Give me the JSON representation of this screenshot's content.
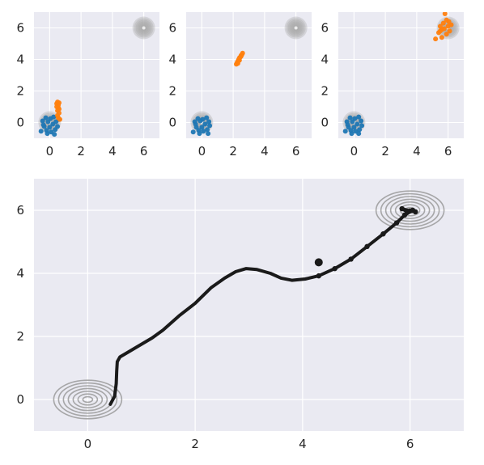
{
  "chart_data": [
    {
      "type": "scatter",
      "panel": "top-left",
      "xlim": [
        -1,
        7
      ],
      "ylim": [
        -1,
        7
      ],
      "xticks": [
        0,
        2,
        4,
        6
      ],
      "yticks": [
        0,
        2,
        4,
        6
      ],
      "grid": true,
      "gaussians": [
        {
          "center": [
            0,
            0
          ]
        },
        {
          "center": [
            6,
            6
          ]
        }
      ],
      "series": [
        {
          "color": "#1f77b4",
          "points": [
            [
              -0.55,
              -0.55
            ],
            [
              -0.45,
              0.1
            ],
            [
              -0.35,
              -0.25
            ],
            [
              -0.25,
              0.3
            ],
            [
              -0.2,
              -0.5
            ],
            [
              -0.1,
              0.05
            ],
            [
              0,
              -0.3
            ],
            [
              0.05,
              0.25
            ],
            [
              0.1,
              -0.6
            ],
            [
              0.2,
              -0.1
            ],
            [
              0.25,
              0.35
            ],
            [
              0.35,
              -0.45
            ],
            [
              0.4,
              0.05
            ],
            [
              0.5,
              -0.25
            ],
            [
              -0.15,
              -0.7
            ],
            [
              0.3,
              -0.75
            ],
            [
              -0.4,
              -0.15
            ],
            [
              0.6,
              0.2
            ]
          ]
        },
        {
          "color": "#ff7f0e",
          "points": [
            [
              0.45,
              1.2
            ],
            [
              0.5,
              1.3
            ],
            [
              0.55,
              1.1
            ],
            [
              0.6,
              1.25
            ],
            [
              0.55,
              0.95
            ],
            [
              0.5,
              0.75
            ],
            [
              0.6,
              0.6
            ],
            [
              0.5,
              0.45
            ],
            [
              0.55,
              0.3
            ],
            [
              0.65,
              0.2
            ],
            [
              0.45,
              1.0
            ],
            [
              0.6,
              0.85
            ]
          ]
        }
      ]
    },
    {
      "type": "scatter",
      "panel": "top-middle",
      "xlim": [
        -1,
        7
      ],
      "ylim": [
        -1,
        7
      ],
      "xticks": [
        0,
        2,
        4,
        6
      ],
      "yticks": [
        0,
        2,
        4,
        6
      ],
      "grid": true,
      "gaussians": [
        {
          "center": [
            0,
            0
          ]
        },
        {
          "center": [
            6,
            6
          ]
        }
      ],
      "series": [
        {
          "color": "#1f77b4",
          "points": [
            [
              -0.55,
              -0.6
            ],
            [
              -0.45,
              0.05
            ],
            [
              -0.35,
              -0.3
            ],
            [
              -0.25,
              0.25
            ],
            [
              -0.2,
              -0.5
            ],
            [
              -0.1,
              0.1
            ],
            [
              0,
              -0.3
            ],
            [
              0.05,
              0.2
            ],
            [
              0.1,
              -0.55
            ],
            [
              0.2,
              -0.1
            ],
            [
              0.3,
              0.3
            ],
            [
              0.35,
              -0.45
            ],
            [
              0.45,
              0.05
            ],
            [
              0.5,
              -0.2
            ],
            [
              -0.15,
              -0.7
            ],
            [
              0.4,
              -0.7
            ],
            [
              -0.4,
              -0.1
            ]
          ]
        },
        {
          "color": "#ff7f0e",
          "points": [
            [
              2.2,
              3.7
            ],
            [
              2.25,
              3.8
            ],
            [
              2.3,
              3.9
            ],
            [
              2.35,
              4.0
            ],
            [
              2.4,
              4.1
            ],
            [
              2.45,
              4.15
            ],
            [
              2.5,
              4.25
            ],
            [
              2.55,
              4.3
            ],
            [
              2.6,
              4.4
            ],
            [
              2.3,
              3.75
            ],
            [
              2.4,
              3.95
            ],
            [
              2.5,
              4.2
            ]
          ]
        }
      ]
    },
    {
      "type": "scatter",
      "panel": "top-right",
      "xlim": [
        -1,
        7
      ],
      "ylim": [
        -1,
        7
      ],
      "xticks": [
        0,
        2,
        4,
        6
      ],
      "yticks": [
        0,
        2,
        4,
        6
      ],
      "grid": true,
      "gaussians": [
        {
          "center": [
            0,
            0
          ]
        },
        {
          "center": [
            6,
            6
          ]
        }
      ],
      "series": [
        {
          "color": "#1f77b4",
          "points": [
            [
              -0.55,
              -0.55
            ],
            [
              -0.45,
              0.05
            ],
            [
              -0.35,
              -0.3
            ],
            [
              -0.25,
              0.3
            ],
            [
              -0.2,
              -0.5
            ],
            [
              -0.1,
              0.05
            ],
            [
              0,
              -0.3
            ],
            [
              0.05,
              0.25
            ],
            [
              0.1,
              -0.55
            ],
            [
              0.2,
              -0.1
            ],
            [
              0.3,
              0.35
            ],
            [
              0.35,
              -0.45
            ],
            [
              0.45,
              0.1
            ],
            [
              0.5,
              -0.2
            ],
            [
              -0.15,
              -0.7
            ],
            [
              0.3,
              -0.7
            ],
            [
              -0.4,
              -0.15
            ]
          ]
        },
        {
          "color": "#ff7f0e",
          "points": [
            [
              5.2,
              5.3
            ],
            [
              5.4,
              5.7
            ],
            [
              5.5,
              6.1
            ],
            [
              5.6,
              5.9
            ],
            [
              5.7,
              6.3
            ],
            [
              5.8,
              6.9
            ],
            [
              5.9,
              6.5
            ],
            [
              6.0,
              6.1
            ],
            [
              6.1,
              5.8
            ],
            [
              6.2,
              6.2
            ],
            [
              5.6,
              5.4
            ],
            [
              5.9,
              5.6
            ],
            [
              5.5,
              5.8
            ],
            [
              6.05,
              6.4
            ],
            [
              5.75,
              5.95
            ]
          ]
        }
      ]
    },
    {
      "type": "line",
      "panel": "bottom",
      "xlim": [
        -1,
        7
      ],
      "ylim": [
        -1,
        7
      ],
      "xticks": [
        0,
        2,
        4,
        6
      ],
      "yticks": [
        0,
        2,
        4,
        6
      ],
      "grid": true,
      "gaussians": [
        {
          "center": [
            0,
            0
          ]
        },
        {
          "center": [
            6,
            6
          ]
        }
      ],
      "series": [
        {
          "color": "#1a1a1a",
          "points": [
            [
              0.42,
              -0.15
            ],
            [
              0.5,
              0.1
            ],
            [
              0.53,
              0.5
            ],
            [
              0.54,
              0.9
            ],
            [
              0.55,
              1.2
            ],
            [
              0.6,
              1.35
            ],
            [
              0.75,
              1.5
            ],
            [
              0.9,
              1.65
            ],
            [
              1.2,
              1.95
            ],
            [
              1.4,
              2.2
            ],
            [
              1.7,
              2.65
            ],
            [
              2.0,
              3.05
            ],
            [
              2.3,
              3.55
            ],
            [
              2.55,
              3.85
            ],
            [
              2.75,
              4.05
            ],
            [
              2.95,
              4.15
            ],
            [
              3.15,
              4.12
            ],
            [
              3.4,
              4.0
            ],
            [
              3.6,
              3.85
            ],
            [
              3.8,
              3.78
            ],
            [
              4.05,
              3.82
            ],
            [
              4.3,
              3.92
            ],
            [
              4.6,
              4.15
            ],
            [
              4.9,
              4.45
            ],
            [
              5.2,
              4.85
            ],
            [
              5.5,
              5.25
            ],
            [
              5.75,
              5.6
            ],
            [
              5.9,
              5.85
            ],
            [
              6.05,
              6.0
            ],
            [
              5.95,
              5.95
            ],
            [
              5.85,
              6.05
            ],
            [
              6.0,
              5.98
            ],
            [
              6.1,
              5.95
            ]
          ]
        }
      ]
    }
  ]
}
